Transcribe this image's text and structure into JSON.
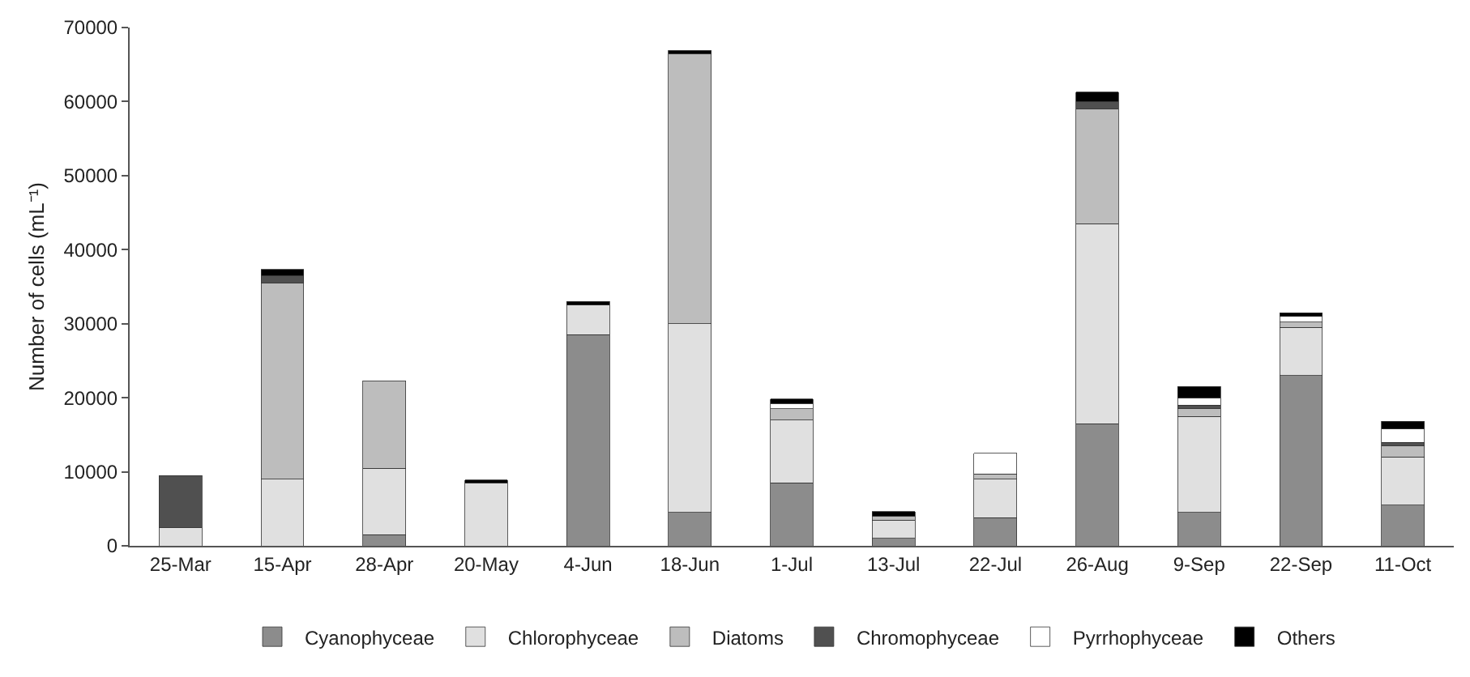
{
  "chart_data": {
    "type": "bar",
    "stacked": true,
    "ylabel": "Number of cells (mL⁻¹)",
    "categories": [
      "25-Mar",
      "15-Apr",
      "28-Apr",
      "20-May",
      "4-Jun",
      "18-Jun",
      "1-Jul",
      "13-Jul",
      "22-Jul",
      "26-Aug",
      "9-Sep",
      "22-Sep",
      "11-Oct"
    ],
    "series": [
      {
        "name": "Cyanophyceae",
        "color": "#8c8c8c",
        "values": [
          0,
          0,
          1500,
          0,
          28500,
          4500,
          8500,
          1000,
          3800,
          16500,
          4500,
          23000,
          5500
        ]
      },
      {
        "name": "Chlorophyceae",
        "color": "#e0e0e0",
        "values": [
          2500,
          9000,
          9000,
          8500,
          4000,
          25500,
          8500,
          2500,
          5200,
          27000,
          13000,
          6500,
          6500
        ]
      },
      {
        "name": "Diatoms",
        "color": "#bdbdbd",
        "values": [
          0,
          26500,
          11800,
          0,
          0,
          36500,
          1500,
          500,
          700,
          15500,
          1000,
          700,
          1500
        ]
      },
      {
        "name": "Chromophyceae",
        "color": "#505050",
        "values": [
          7000,
          1000,
          0,
          0,
          0,
          0,
          0,
          0,
          0,
          1000,
          500,
          0,
          500
        ]
      },
      {
        "name": "Pyrrhophyceae",
        "color": "#ffffff",
        "values": [
          0,
          0,
          0,
          0,
          0,
          0,
          700,
          0,
          2800,
          0,
          1000,
          800,
          1800
        ]
      },
      {
        "name": "Others",
        "color": "#000000",
        "values": [
          0,
          800,
          0,
          400,
          500,
          400,
          600,
          600,
          0,
          1300,
          1500,
          500,
          1000
        ]
      }
    ],
    "ylim": [
      0,
      70000
    ],
    "yticks": [
      0,
      10000,
      20000,
      30000,
      40000,
      50000,
      60000,
      70000
    ],
    "grid": false,
    "legend": "bottom"
  }
}
